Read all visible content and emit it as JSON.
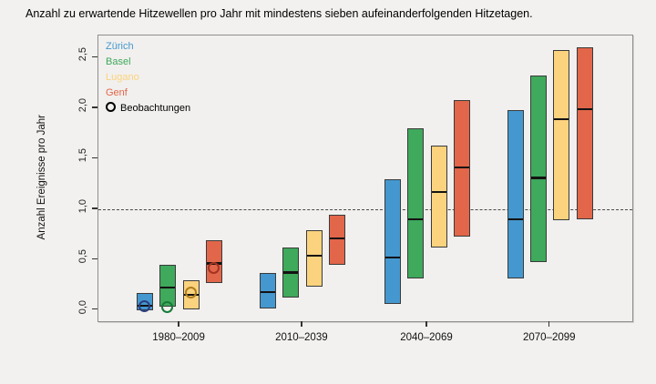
{
  "title": "Anzahl zu erwartende Hitzewellen pro Jahr mit mindestens sieben aufeinanderfolgenden Hitzetagen.",
  "chart_data": {
    "type": "boxplot",
    "ylabel": "Anzahl Ereignisse pro Jahr",
    "ylim": [
      -0.11,
      2.72
    ],
    "yticks": [
      0,
      0.5,
      1,
      1.5,
      2,
      2.5
    ],
    "ytick_labels": [
      "0,0",
      "0,5",
      "1,0",
      "1,5",
      "2,0",
      "2,5"
    ],
    "categories": [
      "1980–2009",
      "2010–2039",
      "2040–2069",
      "2070–2099"
    ],
    "reference_line": {
      "value": 1.0,
      "style": "dashed"
    },
    "grid": false,
    "legend_position": "top-left-inside",
    "legend": {
      "observations_label": "Beobachtungen"
    },
    "series": [
      {
        "name": "Zürich",
        "color": "#4598CF",
        "obs_color": "#2B3F7E",
        "boxes": [
          {
            "category": "1980–2009",
            "low": 0.0,
            "high": 0.17,
            "median": 0.05,
            "obs": 0.03
          },
          {
            "category": "2010–2039",
            "low": 0.02,
            "high": 0.37,
            "median": 0.19
          },
          {
            "category": "2040–2069",
            "low": 0.06,
            "high": 1.3,
            "median": 0.53
          },
          {
            "category": "2070–2099",
            "low": 0.31,
            "high": 1.98,
            "median": 0.91
          }
        ]
      },
      {
        "name": "Basel",
        "color": "#3FA95C",
        "obs_color": "#177A38",
        "boxes": [
          {
            "category": "1980–2009",
            "low": 0.03,
            "high": 0.45,
            "median": 0.23,
            "obs": 0.02
          },
          {
            "category": "2010–2039",
            "low": 0.12,
            "high": 0.62,
            "median": 0.38
          },
          {
            "category": "2040–2069",
            "low": 0.31,
            "high": 1.8,
            "median": 0.91
          },
          {
            "category": "2070–2099",
            "low": 0.48,
            "high": 2.32,
            "median": 1.32
          }
        ]
      },
      {
        "name": "Lugano",
        "color": "#FBD37E",
        "obs_color": "#AF7D1E",
        "boxes": [
          {
            "category": "1980–2009",
            "low": 0.01,
            "high": 0.3,
            "median": 0.16,
            "obs": 0.17
          },
          {
            "category": "2010–2039",
            "low": 0.23,
            "high": 0.79,
            "median": 0.55
          },
          {
            "category": "2040–2069",
            "low": 0.62,
            "high": 1.63,
            "median": 1.18
          },
          {
            "category": "2070–2099",
            "low": 0.89,
            "high": 2.58,
            "median": 1.9
          }
        ]
      },
      {
        "name": "Genf",
        "color": "#E2664A",
        "obs_color": "#A23320",
        "boxes": [
          {
            "category": "1980–2009",
            "low": 0.27,
            "high": 0.69,
            "median": 0.47,
            "obs": 0.41
          },
          {
            "category": "2010–2039",
            "low": 0.45,
            "high": 0.94,
            "median": 0.72
          },
          {
            "category": "2040–2069",
            "low": 0.73,
            "high": 2.08,
            "median": 1.42
          },
          {
            "category": "2070–2099",
            "low": 0.9,
            "high": 2.6,
            "median": 2.0
          }
        ]
      }
    ]
  }
}
